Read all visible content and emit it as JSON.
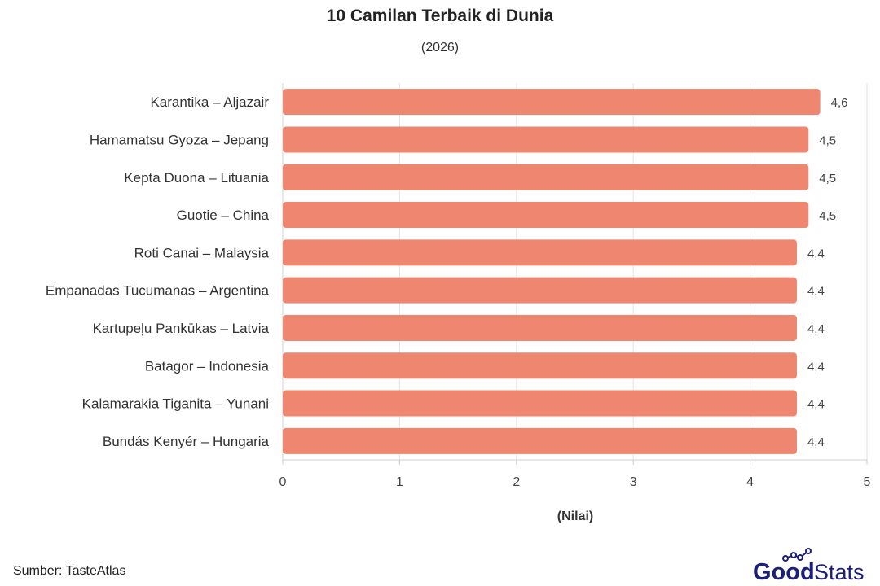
{
  "chart_data": {
    "type": "bar",
    "orientation": "horizontal",
    "title": "10 Camilan Terbaik di Dunia",
    "subtitle": "(2026)",
    "xlabel": "(Nilai)",
    "ylabel": "",
    "xlim": [
      0,
      5
    ],
    "xticks": [
      0,
      1,
      2,
      3,
      4,
      5
    ],
    "grid": true,
    "bar_color": "#EE8670",
    "categories": [
      "Karantika – Aljazair",
      "Hamamatsu Gyoza – Jepang",
      "Kepta Duona – Lituania",
      "Guotie – China",
      "Roti Canai – Malaysia",
      "Empanadas Tucumanas – Argentina",
      "Kartupeļu Pankūkas – Latvia",
      "Batagor – Indonesia",
      "Kalamarakia Tiganita – Yunani",
      "Bundás Kenyér – Hungaria"
    ],
    "values": [
      4.6,
      4.5,
      4.5,
      4.5,
      4.4,
      4.4,
      4.4,
      4.4,
      4.4,
      4.4
    ],
    "data_labels": [
      "4,6",
      "4,5",
      "4,5",
      "4,5",
      "4,4",
      "4,4",
      "4,4",
      "4,4",
      "4,4",
      "4,4"
    ]
  },
  "footer": {
    "source": "Sumber: TasteAtlas"
  },
  "logo": {
    "brand_part1": "Good",
    "brand_part2": "Stats",
    "brand_color": "#1B1F7A"
  }
}
